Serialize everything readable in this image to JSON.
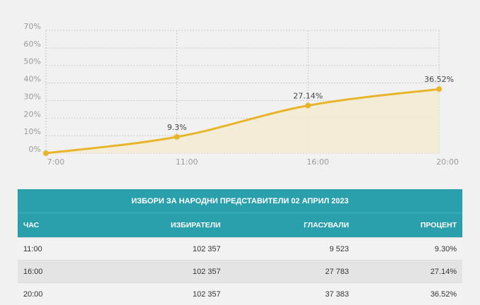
{
  "chart_data": {
    "type": "area",
    "x": [
      "7:00",
      "11:00",
      "16:00",
      "20:00"
    ],
    "series": [
      {
        "values": [
          0,
          9.3,
          27.14,
          36.52
        ],
        "labels": [
          "",
          "9.3%",
          "27.14%",
          "36.52%"
        ]
      }
    ],
    "yticks": [
      "0%",
      "10%",
      "20%",
      "30%",
      "40%",
      "50%",
      "60%",
      "70%"
    ],
    "ylim": [
      0,
      70
    ],
    "grid": true,
    "line_color": "#e8b52a",
    "fill_color": "#f3ecd2"
  },
  "table": {
    "title": "ИЗБОРИ ЗА НАРОДНИ ПРЕДСТАВИТЕЛИ 02 АПРИЛ 2023",
    "headers": [
      "ЧАС",
      "ИЗБИРАТЕЛИ",
      "ГЛАСУВАЛИ",
      "ПРОЦЕНТ"
    ],
    "rows": [
      [
        "11:00",
        "102 357",
        "9 523",
        "9.30%"
      ],
      [
        "16:00",
        "102 357",
        "27 783",
        "27.14%"
      ],
      [
        "20:00",
        "102 357",
        "37 383",
        "36.52%"
      ]
    ]
  },
  "colors": {
    "header_bg": "#2aa0ad"
  }
}
